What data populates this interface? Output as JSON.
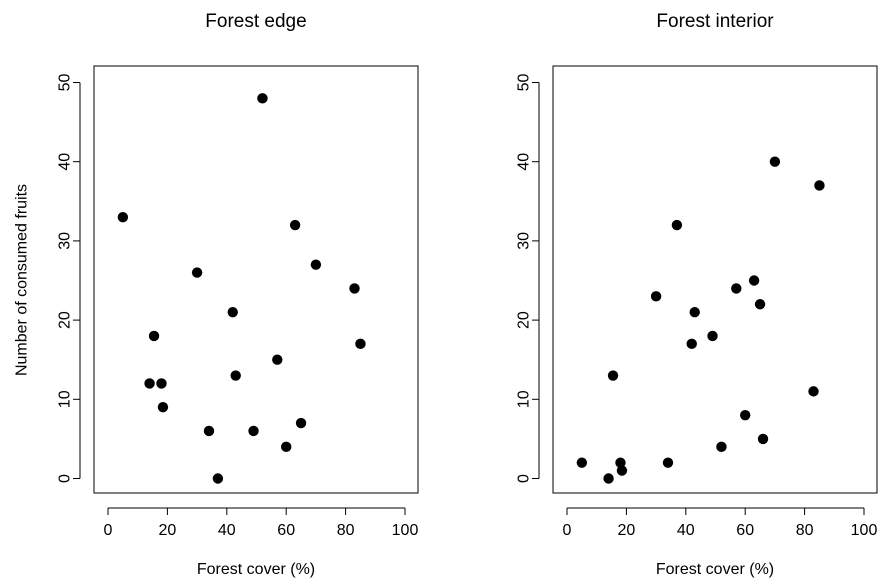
{
  "chart_data": [
    {
      "type": "scatter",
      "title": "Forest edge",
      "xlabel": "Forest cover (%)",
      "ylabel": "Number of consumed fruits",
      "xlim": [
        0,
        100
      ],
      "ylim": [
        0,
        50
      ],
      "xticks": [
        0,
        20,
        40,
        60,
        80,
        100
      ],
      "yticks": [
        0,
        10,
        20,
        30,
        40,
        50
      ],
      "grid": false,
      "points": [
        {
          "x": 5,
          "y": 33
        },
        {
          "x": 14,
          "y": 12
        },
        {
          "x": 15.5,
          "y": 18
        },
        {
          "x": 18,
          "y": 12
        },
        {
          "x": 18.5,
          "y": 9
        },
        {
          "x": 30,
          "y": 26
        },
        {
          "x": 34,
          "y": 6
        },
        {
          "x": 37,
          "y": 0
        },
        {
          "x": 42,
          "y": 21
        },
        {
          "x": 43,
          "y": 13
        },
        {
          "x": 49,
          "y": 6
        },
        {
          "x": 52,
          "y": 48
        },
        {
          "x": 57,
          "y": 15
        },
        {
          "x": 60,
          "y": 4
        },
        {
          "x": 63,
          "y": 32
        },
        {
          "x": 65,
          "y": 7
        },
        {
          "x": 70,
          "y": 27
        },
        {
          "x": 83,
          "y": 24
        },
        {
          "x": 85,
          "y": 17
        }
      ]
    },
    {
      "type": "scatter",
      "title": "Forest interior",
      "xlabel": "Forest cover (%)",
      "ylabel": "",
      "xlim": [
        0,
        100
      ],
      "ylim": [
        0,
        50
      ],
      "xticks": [
        0,
        20,
        40,
        60,
        80,
        100
      ],
      "yticks": [
        0,
        10,
        20,
        30,
        40,
        50
      ],
      "grid": false,
      "points": [
        {
          "x": 5,
          "y": 2
        },
        {
          "x": 14,
          "y": 0
        },
        {
          "x": 15.5,
          "y": 13
        },
        {
          "x": 18,
          "y": 2
        },
        {
          "x": 18.5,
          "y": 1
        },
        {
          "x": 30,
          "y": 23
        },
        {
          "x": 34,
          "y": 2
        },
        {
          "x": 37,
          "y": 32
        },
        {
          "x": 42,
          "y": 17
        },
        {
          "x": 43,
          "y": 21
        },
        {
          "x": 49,
          "y": 18
        },
        {
          "x": 52,
          "y": 4
        },
        {
          "x": 57,
          "y": 24
        },
        {
          "x": 60,
          "y": 8
        },
        {
          "x": 63,
          "y": 25
        },
        {
          "x": 65,
          "y": 22
        },
        {
          "x": 66,
          "y": 5
        },
        {
          "x": 70,
          "y": 40
        },
        {
          "x": 83,
          "y": 11
        },
        {
          "x": 85,
          "y": 37
        }
      ]
    }
  ]
}
